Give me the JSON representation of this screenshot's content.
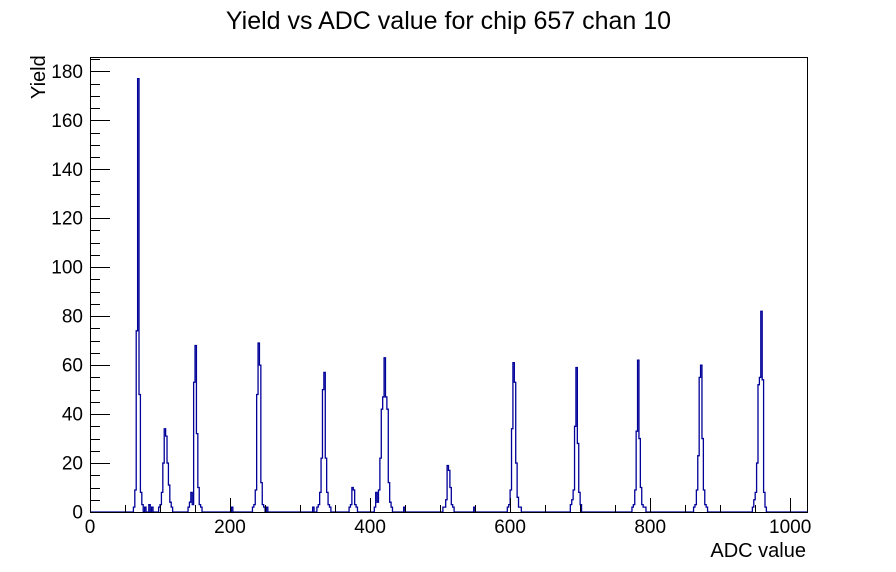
{
  "chart_data": {
    "type": "bar",
    "subtype": "histogram-step-outline",
    "title": "Yield vs ADC value for chip 657 chan 10",
    "xlabel": "ADC value",
    "ylabel": "Yield",
    "xlim": [
      0,
      1024
    ],
    "ylim": [
      0,
      185.85
    ],
    "x_major_tick_step": 200,
    "x_minor_tick_step": 50,
    "y_major_tick_step": 20,
    "y_minor_tick_step": 5,
    "x_tick_labels": [
      "0",
      "200",
      "400",
      "600",
      "800",
      "1000"
    ],
    "y_tick_labels": [
      "0",
      "20",
      "40",
      "60",
      "80",
      "100",
      "120",
      "140",
      "160",
      "180"
    ],
    "grid": false,
    "legend": false,
    "background_color": "#ffffff",
    "frame_color": "#000000",
    "line_color": "#000099",
    "bin_width": 2,
    "bins": [
      [
        62,
        2
      ],
      [
        64,
        9
      ],
      [
        66,
        74
      ],
      [
        68,
        177
      ],
      [
        70,
        48
      ],
      [
        72,
        8
      ],
      [
        74,
        3
      ],
      [
        78,
        2
      ],
      [
        84,
        3
      ],
      [
        88,
        2
      ],
      [
        98,
        2
      ],
      [
        100,
        3
      ],
      [
        102,
        8
      ],
      [
        104,
        20
      ],
      [
        106,
        34
      ],
      [
        108,
        31
      ],
      [
        110,
        20
      ],
      [
        112,
        11
      ],
      [
        114,
        4
      ],
      [
        116,
        2
      ],
      [
        140,
        2
      ],
      [
        142,
        4
      ],
      [
        144,
        8
      ],
      [
        146,
        3
      ],
      [
        148,
        53
      ],
      [
        150,
        68
      ],
      [
        152,
        32
      ],
      [
        154,
        10
      ],
      [
        156,
        3
      ],
      [
        158,
        2
      ],
      [
        202,
        2
      ],
      [
        232,
        2
      ],
      [
        234,
        3
      ],
      [
        236,
        9
      ],
      [
        238,
        48
      ],
      [
        240,
        69
      ],
      [
        242,
        60
      ],
      [
        244,
        12
      ],
      [
        246,
        3
      ],
      [
        248,
        2
      ],
      [
        252,
        2
      ],
      [
        318,
        2
      ],
      [
        324,
        2
      ],
      [
        326,
        3
      ],
      [
        328,
        8
      ],
      [
        330,
        22
      ],
      [
        332,
        50
      ],
      [
        334,
        57
      ],
      [
        336,
        22
      ],
      [
        338,
        8
      ],
      [
        340,
        3
      ],
      [
        342,
        2
      ],
      [
        370,
        2
      ],
      [
        372,
        3
      ],
      [
        374,
        10
      ],
      [
        376,
        9
      ],
      [
        378,
        3
      ],
      [
        380,
        2
      ],
      [
        406,
        2
      ],
      [
        408,
        8
      ],
      [
        410,
        4
      ],
      [
        412,
        9
      ],
      [
        414,
        22
      ],
      [
        416,
        42
      ],
      [
        418,
        47
      ],
      [
        420,
        63
      ],
      [
        422,
        47
      ],
      [
        424,
        42
      ],
      [
        426,
        12
      ],
      [
        428,
        4
      ],
      [
        430,
        2
      ],
      [
        448,
        2
      ],
      [
        504,
        2
      ],
      [
        506,
        2
      ],
      [
        508,
        5
      ],
      [
        510,
        19
      ],
      [
        512,
        17
      ],
      [
        514,
        10
      ],
      [
        516,
        3
      ],
      [
        518,
        2
      ],
      [
        548,
        2
      ],
      [
        596,
        2
      ],
      [
        598,
        3
      ],
      [
        600,
        9
      ],
      [
        602,
        34
      ],
      [
        604,
        61
      ],
      [
        606,
        53
      ],
      [
        608,
        20
      ],
      [
        610,
        6
      ],
      [
        612,
        2
      ],
      [
        614,
        2
      ],
      [
        686,
        3
      ],
      [
        688,
        5
      ],
      [
        690,
        9
      ],
      [
        692,
        35
      ],
      [
        694,
        59
      ],
      [
        696,
        28
      ],
      [
        698,
        8
      ],
      [
        700,
        3
      ],
      [
        774,
        2
      ],
      [
        776,
        3
      ],
      [
        778,
        9
      ],
      [
        780,
        33
      ],
      [
        782,
        62
      ],
      [
        784,
        30
      ],
      [
        786,
        10
      ],
      [
        788,
        3
      ],
      [
        790,
        2
      ],
      [
        792,
        2
      ],
      [
        862,
        2
      ],
      [
        864,
        3
      ],
      [
        866,
        9
      ],
      [
        868,
        23
      ],
      [
        870,
        55
      ],
      [
        872,
        60
      ],
      [
        874,
        30
      ],
      [
        876,
        9
      ],
      [
        878,
        3
      ],
      [
        880,
        2
      ],
      [
        946,
        2
      ],
      [
        948,
        5
      ],
      [
        950,
        8
      ],
      [
        952,
        20
      ],
      [
        954,
        52
      ],
      [
        956,
        55
      ],
      [
        958,
        82
      ],
      [
        960,
        54
      ],
      [
        962,
        8
      ],
      [
        964,
        2
      ]
    ],
    "peaks_summary": [
      {
        "adc": 69,
        "yield": 177
      },
      {
        "adc": 106,
        "yield": 34
      },
      {
        "adc": 151,
        "yield": 68
      },
      {
        "adc": 241,
        "yield": 69
      },
      {
        "adc": 335,
        "yield": 57
      },
      {
        "adc": 375,
        "yield": 10
      },
      {
        "adc": 421,
        "yield": 63
      },
      {
        "adc": 511,
        "yield": 19
      },
      {
        "adc": 605,
        "yield": 61
      },
      {
        "adc": 695,
        "yield": 59
      },
      {
        "adc": 783,
        "yield": 62
      },
      {
        "adc": 873,
        "yield": 60
      },
      {
        "adc": 959,
        "yield": 82
      }
    ]
  }
}
